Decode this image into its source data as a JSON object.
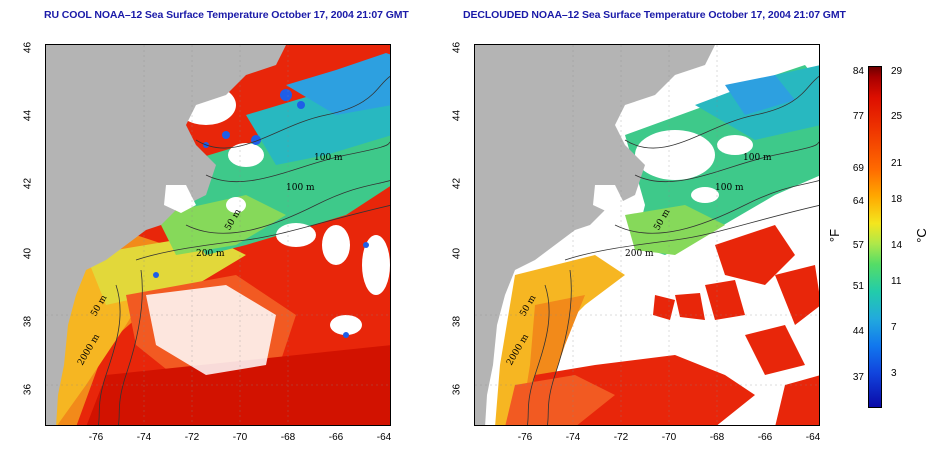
{
  "titles": {
    "left": "RU COOL NOAA–12 Sea Surface Temperature October 17, 2004 21:07 GMT",
    "right": "DECLOUDED NOAA–12 Sea Surface Temperature October 17, 2004 21:07 GMT"
  },
  "axes": {
    "lat_ticks": [
      "46",
      "44",
      "42",
      "40",
      "38",
      "36"
    ],
    "lon_ticks": [
      "-76",
      "-74",
      "-72",
      "-70",
      "-68",
      "-66",
      "-64"
    ]
  },
  "contour_labels": {
    "left": [
      "100 m",
      "100 m",
      "50 m",
      "200 m",
      "50 m",
      "2000 m"
    ],
    "right": [
      "100 m",
      "100 m",
      "50 m",
      "200 m",
      "50 m",
      "2000 m"
    ]
  },
  "colorbar": {
    "fahrenheit_ticks": [
      "84",
      "77",
      "69",
      "64",
      "57",
      "51",
      "44",
      "37"
    ],
    "celsius_ticks": [
      "29",
      "25",
      "21",
      "18",
      "14",
      "11",
      "7",
      "3"
    ],
    "unit_f": "°F",
    "unit_c": "°C"
  },
  "colors": {
    "land": "#b4b4b4",
    "cloud": "#ffffff",
    "warm": "#e31a00",
    "cold": "#1e6ee8",
    "title": "#1a1aa8"
  }
}
